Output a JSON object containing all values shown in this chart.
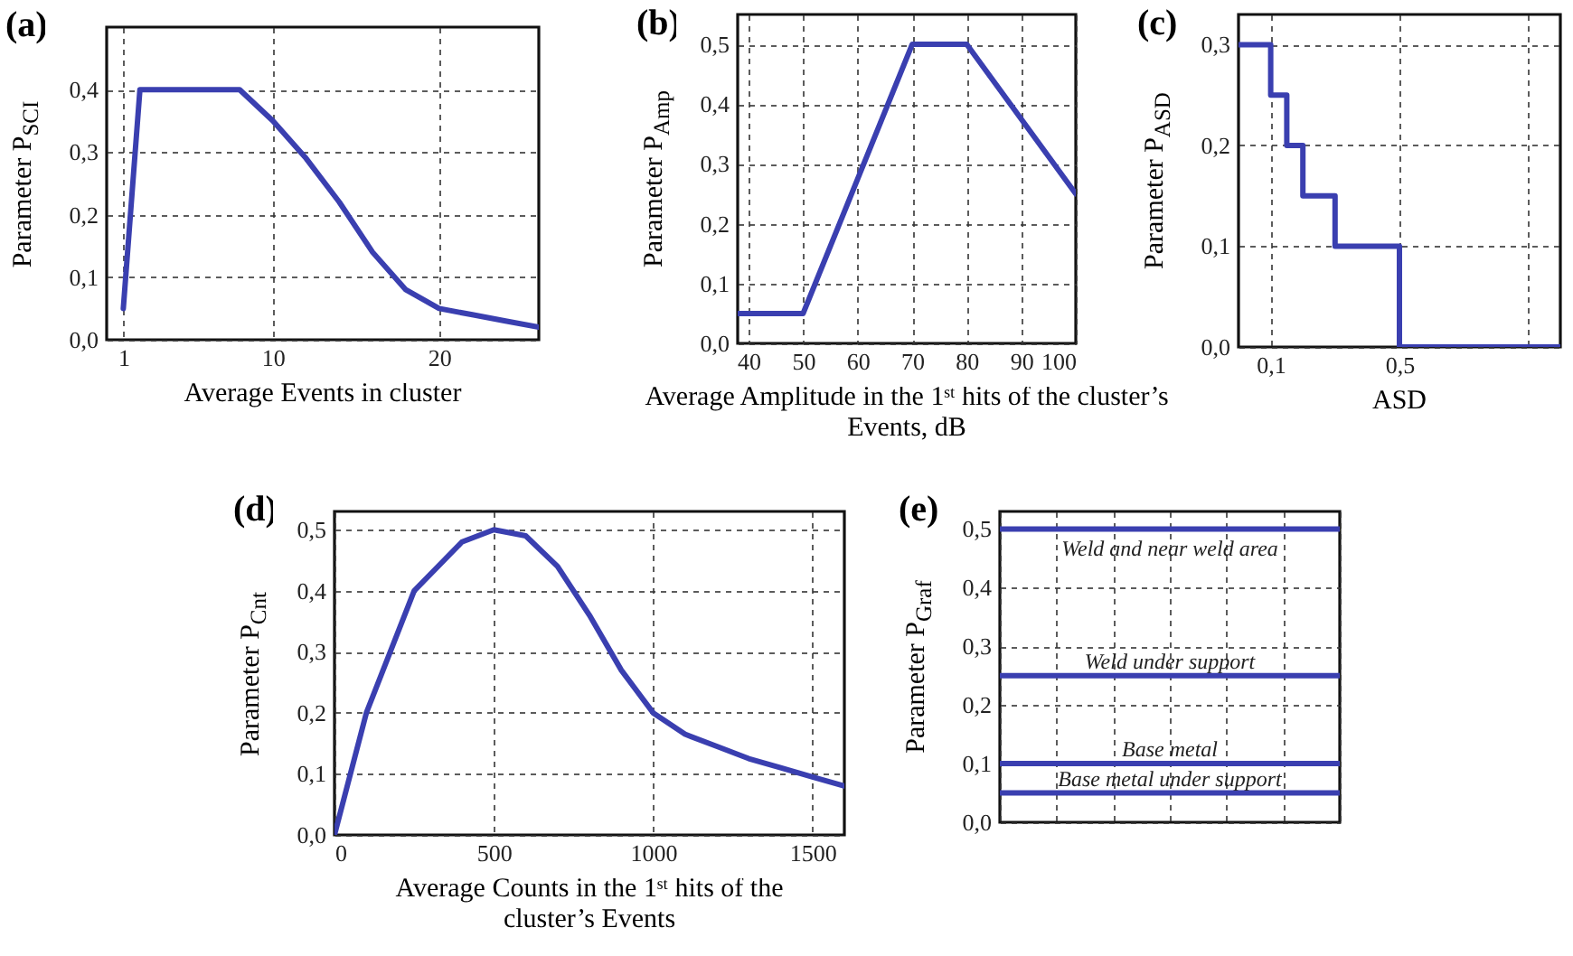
{
  "chart_data": [
    {
      "type": "line",
      "title": "(a)",
      "xlabel": "Average Events in cluster",
      "ylabel": "Parameter P$_{SCI}$",
      "xlim": [
        0,
        26
      ],
      "xticks": [
        1,
        10,
        20
      ],
      "ylim": [
        0,
        0.5
      ],
      "yticks": [
        {
          "value": 0,
          "label": "0,0"
        },
        {
          "value": 0.1,
          "label": "0,1"
        },
        {
          "value": 0.2,
          "label": "0,2"
        },
        {
          "value": 0.3,
          "label": "0,3"
        },
        {
          "value": 0.4,
          "label": "0,4"
        }
      ],
      "grid": true,
      "color": "#3a3fb0",
      "x": [
        1,
        2,
        8,
        10,
        12,
        14,
        16,
        18,
        20,
        22,
        24,
        26
      ],
      "values": [
        0.05,
        0.4,
        0.4,
        0.35,
        0.29,
        0.22,
        0.14,
        0.08,
        0.05,
        0.04,
        0.03,
        0.02
      ]
    },
    {
      "type": "line",
      "title": "(b)",
      "xlabel": "Average Amplitude in the 1ˢᵗ hits of the cluster’s Events, dB",
      "ylabel": "Parameter P$_{Amp}$",
      "xlim": [
        38,
        100
      ],
      "xticks": [
        40,
        50,
        60,
        70,
        80,
        90,
        100
      ],
      "ylim": [
        0,
        0.55
      ],
      "yticks": [
        {
          "value": 0,
          "label": "0,0"
        },
        {
          "value": 0.1,
          "label": "0,1"
        },
        {
          "value": 0.2,
          "label": "0,2"
        },
        {
          "value": 0.3,
          "label": "0,3"
        },
        {
          "value": 0.4,
          "label": "0,4"
        },
        {
          "value": 0.5,
          "label": "0,5"
        }
      ],
      "grid": true,
      "color": "#3a3fb0",
      "x": [
        38,
        50,
        70,
        80,
        100
      ],
      "values": [
        0.05,
        0.05,
        0.5,
        0.5,
        0.25
      ]
    },
    {
      "type": "step",
      "title": "(c)",
      "xlabel": "ASD",
      "ylabel": "Parameter P$_{ASD}$",
      "xlim": [
        0,
        1
      ],
      "xticks": [
        {
          "value": 0.1,
          "label": "0,1"
        },
        {
          "value": 0.5,
          "label": "0,5"
        },
        {
          "value": 0.9,
          "label": null
        }
      ],
      "ylim": [
        0,
        0.33
      ],
      "yticks": [
        {
          "value": 0,
          "label": "0,0"
        },
        {
          "value": 0.1,
          "label": "0,1"
        },
        {
          "value": 0.2,
          "label": "0,2"
        },
        {
          "value": 0.3,
          "label": "0,3"
        }
      ],
      "grid": true,
      "color": "#3a3fb0",
      "x": [
        0,
        0.1,
        0.15,
        0.2,
        0.3,
        0.5,
        1
      ],
      "values": [
        0.3,
        0.25,
        0.2,
        0.15,
        0.1,
        0,
        0
      ]
    },
    {
      "type": "line",
      "title": "(d)",
      "xlabel": "Average Counts in the 1ˢᵗ hits of the cluster’s Events",
      "ylabel": "Parameter P$_{Cnt}$",
      "xlim": [
        0,
        1600
      ],
      "xticks": [
        0,
        500,
        1000,
        1500
      ],
      "ylim": [
        0,
        0.53
      ],
      "yticks": [
        {
          "value": 0,
          "label": "0,0"
        },
        {
          "value": 0.1,
          "label": "0,1"
        },
        {
          "value": 0.2,
          "label": "0,2"
        },
        {
          "value": 0.3,
          "label": "0,3"
        },
        {
          "value": 0.4,
          "label": "0,4"
        },
        {
          "value": 0.5,
          "label": "0,5"
        }
      ],
      "grid": true,
      "color": "#3a3fb0",
      "x": [
        0,
        100,
        250,
        400,
        500,
        600,
        700,
        800,
        900,
        1000,
        1100,
        1200,
        1300,
        1400,
        1500,
        1600
      ],
      "values": [
        0,
        0.2,
        0.4,
        0.48,
        0.5,
        0.49,
        0.44,
        0.36,
        0.27,
        0.2,
        0.165,
        0.145,
        0.125,
        0.11,
        0.095,
        0.08
      ]
    },
    {
      "type": "line",
      "title": "(e)",
      "ylabel": "Parameter P$_{Graf}$",
      "ylim": [
        0,
        0.53
      ],
      "yticks": [
        {
          "value": 0,
          "label": "0,0"
        },
        {
          "value": 0.1,
          "label": "0,1"
        },
        {
          "value": 0.2,
          "label": "0,2"
        },
        {
          "value": 0.3,
          "label": "0,3"
        },
        {
          "value": 0.4,
          "label": "0,4"
        },
        {
          "value": 0.5,
          "label": "0,5"
        }
      ],
      "grid": true,
      "tick_labels": "y",
      "categories": [
        null,
        null,
        null,
        null,
        null,
        null,
        null
      ],
      "series": [
        {
          "name": "Weld and near weld area",
          "color": "#3a3fb0",
          "values": [
            0.5,
            0.5,
            0.5,
            0.5,
            0.5,
            0.5,
            0.5
          ]
        },
        {
          "name": "Weld under support",
          "color": "#3a3fb0",
          "values": [
            0.25,
            0.25,
            0.25,
            0.25,
            0.25,
            0.25,
            0.25
          ]
        },
        {
          "name": "Base metal",
          "color": "#3a3fb0",
          "values": [
            0.1,
            0.1,
            0.1,
            0.1,
            0.1,
            0.1,
            0.1
          ]
        },
        {
          "name": "Base metal under support",
          "color": "#3a3fb0",
          "values": [
            0.05,
            0.05,
            0.05,
            0.05,
            0.05,
            0.05,
            0.05
          ]
        }
      ]
    }
  ]
}
